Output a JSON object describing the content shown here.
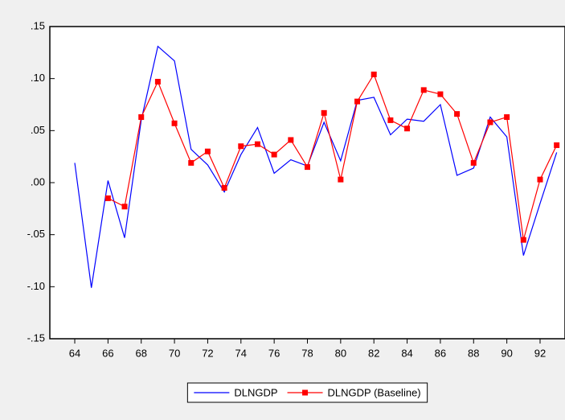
{
  "chart_data": {
    "type": "line",
    "x": [
      64,
      65,
      66,
      67,
      68,
      69,
      70,
      71,
      72,
      73,
      74,
      75,
      76,
      77,
      78,
      79,
      80,
      81,
      82,
      83,
      84,
      85,
      86,
      87,
      88,
      89,
      90,
      91,
      92,
      93
    ],
    "series": [
      {
        "name": "DLNGDP",
        "color": "#0000ff",
        "marker": false,
        "values": [
          0.019,
          -0.101,
          0.002,
          -0.053,
          0.06,
          0.131,
          0.117,
          0.032,
          0.017,
          -0.009,
          0.027,
          0.053,
          0.009,
          0.022,
          0.016,
          0.058,
          0.021,
          0.079,
          0.082,
          0.046,
          0.061,
          0.059,
          0.075,
          0.007,
          0.014,
          0.063,
          0.044,
          -0.07,
          -0.02,
          0.029
        ]
      },
      {
        "name": "DLNGDP (Baseline)",
        "color": "#ff0000",
        "marker": true,
        "values": [
          null,
          null,
          -0.015,
          -0.023,
          0.063,
          0.097,
          0.057,
          0.019,
          0.03,
          -0.005,
          0.035,
          0.037,
          0.027,
          0.041,
          0.015,
          0.067,
          0.003,
          0.078,
          0.104,
          0.06,
          0.052,
          0.089,
          0.085,
          0.066,
          0.019,
          0.058,
          0.063,
          -0.055,
          0.003,
          0.036
        ]
      }
    ],
    "xlim": [
      62.5,
      93.5
    ],
    "xticks": [
      {
        "value": 64,
        "label": "64"
      },
      {
        "value": 66,
        "label": "66"
      },
      {
        "value": 68,
        "label": "68"
      },
      {
        "value": 70,
        "label": "70"
      },
      {
        "value": 72,
        "label": "72"
      },
      {
        "value": 74,
        "label": "74"
      },
      {
        "value": 76,
        "label": "76"
      },
      {
        "value": 78,
        "label": "78"
      },
      {
        "value": 80,
        "label": "80"
      },
      {
        "value": 82,
        "label": "82"
      },
      {
        "value": 84,
        "label": "84"
      },
      {
        "value": 86,
        "label": "86"
      },
      {
        "value": 88,
        "label": "88"
      },
      {
        "value": 90,
        "label": "90"
      },
      {
        "value": 92,
        "label": "92"
      }
    ],
    "ylim": [
      -0.15,
      0.15
    ],
    "yticks": [
      {
        "value": -0.15,
        "label": "-.15"
      },
      {
        "value": -0.1,
        "label": "-.10"
      },
      {
        "value": -0.05,
        "label": "-.05"
      },
      {
        "value": 0,
        "label": ".00"
      },
      {
        "value": 0.05,
        "label": ".05"
      },
      {
        "value": 0.1,
        "label": ".10"
      },
      {
        "value": 0.15,
        "label": ".15"
      }
    ],
    "grid": false,
    "legend": "bottom"
  }
}
